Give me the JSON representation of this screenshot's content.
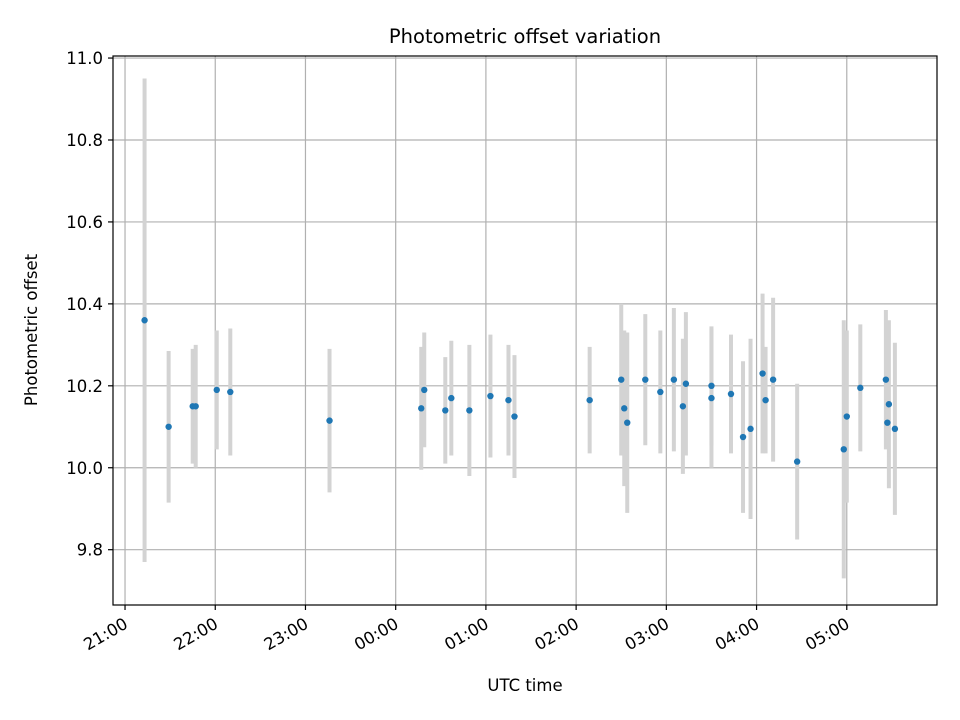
{
  "chart_data": {
    "type": "scatter",
    "title": "Photometric offset variation",
    "xlabel": "UTC time",
    "ylabel": "Photometric offset",
    "x_tick_labels": [
      "21:00",
      "22:00",
      "23:00",
      "00:00",
      "01:00",
      "02:00",
      "03:00",
      "04:00",
      "05:00"
    ],
    "y_tick_labels": [
      "9.8",
      "10.0",
      "10.2",
      "10.4",
      "10.6",
      "10.8",
      "11.0"
    ],
    "xlim": [
      "20:52",
      "06:00"
    ],
    "ylim": [
      9.665,
      11.005
    ],
    "grid": true,
    "errorbar_color": "#d3d3d3",
    "point_color": "#1f77b4",
    "series": [
      {
        "x": [
          "21:13",
          "21:29",
          "21:45",
          "21:47",
          "22:01",
          "22:10",
          "23:16",
          "00:17",
          "00:19",
          "00:33",
          "00:37",
          "00:49",
          "01:03",
          "01:15",
          "01:19",
          "02:09",
          "02:30",
          "02:32",
          "02:34",
          "02:46",
          "02:56",
          "03:05",
          "03:11",
          "03:13",
          "03:30",
          "03:30",
          "03:43",
          "03:51",
          "03:56",
          "04:04",
          "04:06",
          "04:11",
          "04:27",
          "04:58",
          "05:00",
          "05:09",
          "05:26",
          "05:27",
          "05:28",
          "05:32"
        ],
        "y": [
          10.36,
          10.1,
          10.15,
          10.15,
          10.19,
          10.185,
          10.115,
          10.145,
          10.19,
          10.14,
          10.17,
          10.14,
          10.175,
          10.165,
          10.125,
          10.165,
          10.215,
          10.145,
          10.11,
          10.215,
          10.185,
          10.215,
          10.15,
          10.205,
          10.17,
          10.2,
          10.18,
          10.075,
          10.095,
          10.23,
          10.165,
          10.215,
          10.015,
          10.045,
          10.125,
          10.195,
          10.215,
          10.11,
          10.155,
          10.095
        ],
        "yerr": [
          0.59,
          0.185,
          0.14,
          0.15,
          0.145,
          0.155,
          0.175,
          0.15,
          0.14,
          0.13,
          0.14,
          0.16,
          0.15,
          0.135,
          0.15,
          0.13,
          0.185,
          0.19,
          0.22,
          0.16,
          0.15,
          0.175,
          0.165,
          0.175,
          0.17,
          0.145,
          0.145,
          0.185,
          0.22,
          0.195,
          0.13,
          0.2,
          0.19,
          0.315,
          0.21,
          0.155,
          0.17,
          0.06,
          0.205,
          0.21
        ]
      }
    ]
  }
}
